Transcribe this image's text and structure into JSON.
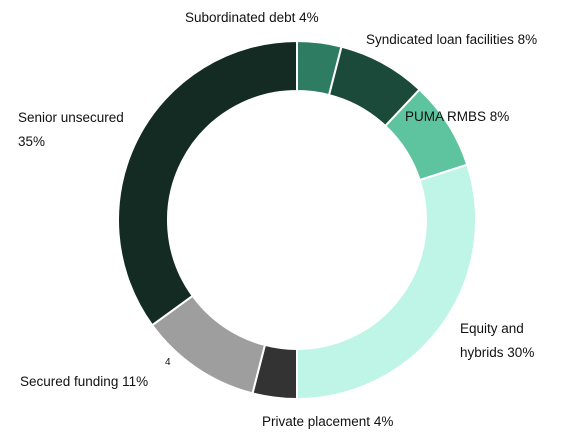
{
  "chart_data": {
    "type": "donut",
    "categories": [
      "Subordinated debt",
      "Syndicated loan facilities",
      "PUMA RMBS",
      "Equity and hybrids",
      "Private placement",
      "Secured funding",
      "Senior unsecured"
    ],
    "values": [
      4,
      8,
      8,
      30,
      4,
      11,
      35
    ],
    "value_labels": [
      "4%",
      "8%",
      "8%",
      "30%",
      "4%",
      "11%",
      "35%"
    ],
    "footnotes": [
      null,
      null,
      null,
      null,
      null,
      "4",
      null
    ],
    "colors": [
      "#2e7d62",
      "#1b4a3a",
      "#5ec4a0",
      "#bff5e6",
      "#333333",
      "#9e9e9e",
      "#132b22"
    ]
  }
}
